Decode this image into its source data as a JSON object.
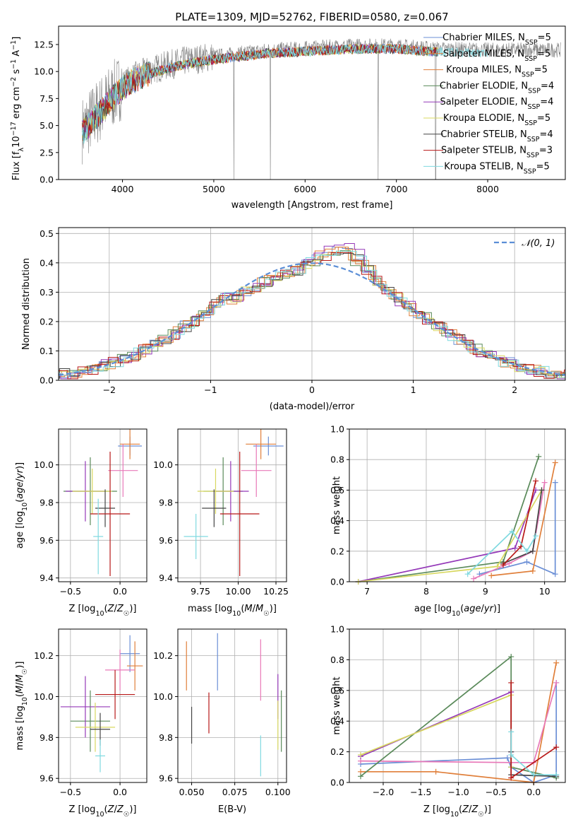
{
  "chart_data": [
    {
      "type": "line",
      "title": "PLATE=1309, MJD=52762, FIBERID=0580, z=0.067",
      "xlabel": "wavelength [Angstrom, rest frame]",
      "ylabel_parts": [
        "Flux [f",
        "λ",
        "10",
        "−17",
        " erg cm",
        "−2",
        " s",
        "−1",
        " A",
        "−1",
        "]"
      ],
      "xlim": [
        3300,
        8850
      ],
      "ylim": [
        0,
        14.2
      ],
      "xticks": [
        4000,
        5000,
        6000,
        7000,
        8000
      ],
      "yticks": [
        0.0,
        2.5,
        5.0,
        7.5,
        10.0,
        12.5
      ],
      "continuum": [
        [
          3560,
          4.6
        ],
        [
          3700,
          6.0
        ],
        [
          3850,
          7.4
        ],
        [
          4000,
          8.8
        ],
        [
          4150,
          9.6
        ],
        [
          4300,
          10.1
        ],
        [
          4500,
          10.6
        ],
        [
          4700,
          11.0
        ],
        [
          5000,
          11.4
        ],
        [
          5300,
          11.7
        ],
        [
          5600,
          12.0
        ],
        [
          5900,
          12.1
        ],
        [
          6300,
          12.3
        ],
        [
          6600,
          12.4
        ],
        [
          7000,
          12.4
        ],
        [
          7300,
          12.2
        ],
        [
          7460,
          12.1
        ],
        [
          8000,
          12.0
        ],
        [
          8800,
          12.0
        ]
      ],
      "data_series": {
        "name": "data",
        "color": "#808080"
      },
      "spikes": [
        {
          "x": 5220,
          "y": 0
        },
        {
          "x": 5620,
          "y": 0
        },
        {
          "x": 6800,
          "y": 0
        },
        {
          "x": 7430,
          "y": 0
        }
      ],
      "legend": [
        {
          "main": "Chabrier MILES, N",
          "sub": "SSP",
          "tail": "=5",
          "color": "#6b8fd6"
        },
        {
          "main": "Salpeter MILES, N",
          "sub": "SSP",
          "tail": "=5",
          "color": "#e07f3a"
        },
        {
          "main": "Kroupa MILES, N",
          "sub": "SSP",
          "tail": "=5",
          "color": "#e07f3a"
        },
        {
          "main": "Chabrier ELODIE, N",
          "sub": "SSP",
          "tail": "=4",
          "color": "#5a8a5a"
        },
        {
          "main": "Salpeter ELODIE, N",
          "sub": "SSP",
          "tail": "=4",
          "color": "#9438b8"
        },
        {
          "main": "Kroupa ELODIE, N",
          "sub": "SSP",
          "tail": "=5",
          "color": "#d8d860"
        },
        {
          "main": "Chabrier STELIB, N",
          "sub": "SSP",
          "tail": "=4",
          "color": "#444444"
        },
        {
          "main": "Salpeter STELIB, N",
          "sub": "SSP",
          "tail": "=3",
          "color": "#b81818"
        },
        {
          "main": "Kroupa STELIB, N",
          "sub": "SSP",
          "tail": "=5",
          "color": "#7fd9e0"
        }
      ]
    },
    {
      "type": "histogram",
      "xlabel": "(data-model)/error",
      "ylabel": "Normed distribution",
      "xlim": [
        -2.5,
        2.5
      ],
      "ylim": [
        0,
        0.52
      ],
      "xticks": [
        -2,
        -1,
        0,
        1,
        2
      ],
      "xtick_labels": [
        "−2",
        "−1",
        "0",
        "1",
        "2"
      ],
      "yticks": [
        0.0,
        0.1,
        0.2,
        0.3,
        0.4,
        0.5
      ],
      "reference": {
        "label": "𝒩(0, 1)",
        "mean": 0,
        "sigma": 1,
        "color": "#5b8ed6"
      },
      "bin_width": 0.1,
      "series": [
        {
          "color": "#6b8fd6",
          "offset": 0.0,
          "skew": 0.3,
          "values": []
        },
        {
          "color": "#e07f3a",
          "offset": -0.04,
          "skew": 0.25
        },
        {
          "color": "#e07f3a",
          "offset": 0.03,
          "skew": 0.3
        },
        {
          "color": "#5a8a5a",
          "offset": -0.02,
          "skew": 0.2
        },
        {
          "color": "#9438b8",
          "offset": 0.02,
          "skew": 0.35
        },
        {
          "color": "#d8d860",
          "offset": 0.0,
          "skew": 0.25
        },
        {
          "color": "#444444",
          "offset": 0.01,
          "skew": 0.28
        },
        {
          "color": "#b81818",
          "offset": -0.01,
          "skew": 0.22
        },
        {
          "color": "#7fd9e0",
          "offset": 0.04,
          "skew": 0.3
        }
      ]
    },
    {
      "type": "errorbar",
      "xlabel": "Z [log10(Z/Z☉)]",
      "ylabel": "age  [log10(age/yr)]",
      "xlim": [
        -0.62,
        0.27
      ],
      "ylim": [
        9.38,
        10.19
      ],
      "xticks": [
        -0.5,
        0.0
      ],
      "xtick_labels": [
        "−0.5",
        "0.0"
      ],
      "yticks": [
        9.4,
        9.6,
        9.8,
        10.0
      ],
      "points": [
        {
          "x": 0.1,
          "xerr": 0.12,
          "y": 10.1,
          "yerr": 0.05,
          "color": "#6b8fd6"
        },
        {
          "x": 0.1,
          "xerr": 0.1,
          "y": 10.11,
          "yerr": 0.08,
          "color": "#e07f3a"
        },
        {
          "x": 0.03,
          "xerr": 0.15,
          "y": 9.97,
          "yerr": 0.14,
          "color": "#e878b8"
        },
        {
          "x": -0.3,
          "xerr": 0.27,
          "y": 9.86,
          "yerr": 0.18,
          "color": "#5a8a5a"
        },
        {
          "x": -0.35,
          "xerr": 0.2,
          "y": 9.86,
          "yerr": 0.16,
          "color": "#9438b8"
        },
        {
          "x": -0.28,
          "xerr": 0.2,
          "y": 9.86,
          "yerr": 0.12,
          "color": "#d8d860"
        },
        {
          "x": -0.15,
          "xerr": 0.1,
          "y": 9.77,
          "yerr": 0.1,
          "color": "#444444"
        },
        {
          "x": -0.1,
          "xerr": 0.2,
          "y": 9.74,
          "yerr": 0.33,
          "color": "#b81818"
        },
        {
          "x": -0.22,
          "xerr": 0.05,
          "y": 9.62,
          "yerr": 0.2,
          "color": "#7fd9e0"
        }
      ]
    },
    {
      "type": "errorbar",
      "xlabel": "mass [log10(M/M☉)]",
      "xlim": [
        9.6,
        10.32
      ],
      "ylim": [
        9.38,
        10.19
      ],
      "xticks": [
        9.75,
        10.0,
        10.25
      ],
      "xtick_labels": [
        "9.75",
        "10.00",
        "10.25"
      ],
      "yticks": [
        9.4,
        9.6,
        9.8,
        10.0
      ],
      "points": [
        {
          "x": 10.2,
          "xerr": 0.1,
          "y": 10.1,
          "yerr": 0.05,
          "color": "#6b8fd6"
        },
        {
          "x": 10.15,
          "xerr": 0.1,
          "y": 10.11,
          "yerr": 0.08,
          "color": "#e07f3a"
        },
        {
          "x": 10.12,
          "xerr": 0.1,
          "y": 9.97,
          "yerr": 0.14,
          "color": "#e878b8"
        },
        {
          "x": 9.9,
          "xerr": 0.13,
          "y": 9.86,
          "yerr": 0.18,
          "color": "#5a8a5a"
        },
        {
          "x": 9.95,
          "xerr": 0.12,
          "y": 9.86,
          "yerr": 0.16,
          "color": "#9438b8"
        },
        {
          "x": 9.85,
          "xerr": 0.12,
          "y": 9.86,
          "yerr": 0.12,
          "color": "#d8d860"
        },
        {
          "x": 9.84,
          "xerr": 0.08,
          "y": 9.77,
          "yerr": 0.1,
          "color": "#444444"
        },
        {
          "x": 10.01,
          "xerr": 0.13,
          "y": 9.74,
          "yerr": 0.33,
          "color": "#b81818"
        },
        {
          "x": 9.72,
          "xerr": 0.08,
          "y": 9.62,
          "yerr": 0.12,
          "color": "#7fd9e0"
        }
      ]
    },
    {
      "type": "line",
      "xlabel": "age  [log10(age/yr)]",
      "ylabel": "mass weight",
      "xlim": [
        6.7,
        10.35
      ],
      "ylim": [
        0,
        1.0
      ],
      "xticks": [
        7,
        8,
        9,
        10
      ],
      "yticks": [
        0.0,
        0.2,
        0.4,
        0.6,
        0.8,
        1.0
      ],
      "series": [
        {
          "color": "#6b8fd6",
          "x": [
            8.9,
            9.7,
            10.18,
            10.18
          ],
          "y": [
            0.05,
            0.13,
            0.05,
            0.65
          ]
        },
        {
          "color": "#e07f3a",
          "x": [
            9.1,
            9.8,
            10.18
          ],
          "y": [
            0.04,
            0.07,
            0.78
          ]
        },
        {
          "color": "#e878b8",
          "x": [
            8.8,
            9.4,
            9.8,
            10.0
          ],
          "y": [
            0.02,
            0.12,
            0.2,
            0.65
          ]
        },
        {
          "color": "#5a8a5a",
          "x": [
            6.85,
            9.3,
            9.9
          ],
          "y": [
            0.0,
            0.13,
            0.82
          ]
        },
        {
          "color": "#9438b8",
          "x": [
            6.85,
            9.5,
            9.85
          ],
          "y": [
            0.0,
            0.22,
            0.6
          ]
        },
        {
          "color": "#d8d860",
          "x": [
            6.85,
            9.2,
            9.95
          ],
          "y": [
            0.0,
            0.1,
            0.6
          ]
        },
        {
          "color": "#444444",
          "x": [
            9.3,
            9.8,
            9.95
          ],
          "y": [
            0.12,
            0.2,
            0.6
          ]
        },
        {
          "color": "#b81818",
          "x": [
            9.3,
            9.6,
            9.85
          ],
          "y": [
            0.11,
            0.23,
            0.66
          ]
        },
        {
          "color": "#7fd9e0",
          "x": [
            8.7,
            9.45,
            9.7,
            9.85
          ],
          "y": [
            0.05,
            0.33,
            0.2,
            0.3
          ]
        }
      ]
    },
    {
      "type": "errorbar",
      "xlabel": "Z [log10(Z/Z☉)]",
      "ylabel": "mass [log10(M/M☉)]",
      "xlim": [
        -0.62,
        0.27
      ],
      "ylim": [
        9.58,
        10.33
      ],
      "xticks": [
        -0.5,
        0.0
      ],
      "xtick_labels": [
        "−0.5",
        "0.0"
      ],
      "yticks": [
        9.6,
        9.8,
        10.0,
        10.2
      ],
      "points": [
        {
          "x": 0.1,
          "xerr": 0.1,
          "y": 10.21,
          "yerr": 0.09,
          "color": "#6b8fd6"
        },
        {
          "x": 0.15,
          "xerr": 0.08,
          "y": 10.15,
          "yerr": 0.12,
          "color": "#e07f3a"
        },
        {
          "x": 0.0,
          "xerr": 0.15,
          "y": 10.13,
          "yerr": 0.1,
          "color": "#e878b8"
        },
        {
          "x": -0.3,
          "xerr": 0.2,
          "y": 9.88,
          "yerr": 0.15,
          "color": "#5a8a5a"
        },
        {
          "x": -0.35,
          "xerr": 0.25,
          "y": 9.95,
          "yerr": 0.15,
          "color": "#9438b8"
        },
        {
          "x": -0.25,
          "xerr": 0.2,
          "y": 9.85,
          "yerr": 0.12,
          "color": "#d8d860"
        },
        {
          "x": -0.2,
          "xerr": 0.1,
          "y": 9.84,
          "yerr": 0.08,
          "color": "#444444"
        },
        {
          "x": -0.05,
          "xerr": 0.2,
          "y": 10.01,
          "yerr": 0.12,
          "color": "#b81818"
        },
        {
          "x": -0.2,
          "xerr": 0.05,
          "y": 9.71,
          "yerr": 0.08,
          "color": "#7fd9e0"
        }
      ]
    },
    {
      "type": "errorbar",
      "xlabel": "E(B-V)",
      "xlim": [
        0.042,
        0.105
      ],
      "ylim": [
        9.58,
        10.33
      ],
      "xticks": [
        0.05,
        0.075,
        0.1
      ],
      "xtick_labels": [
        "0.050",
        "0.075",
        "0.100"
      ],
      "yticks": [
        9.6,
        9.8,
        10.0,
        10.2
      ],
      "points": [
        {
          "x": 0.065,
          "y": 10.17,
          "yerr": 0.14,
          "color": "#6b8fd6"
        },
        {
          "x": 0.047,
          "y": 10.15,
          "yerr": 0.12,
          "color": "#e07f3a"
        },
        {
          "x": 0.09,
          "y": 10.13,
          "yerr": 0.15,
          "color": "#e878b8"
        },
        {
          "x": 0.102,
          "y": 9.88,
          "yerr": 0.15,
          "color": "#5a8a5a"
        },
        {
          "x": 0.1,
          "y": 10.0,
          "yerr": 0.11,
          "color": "#9438b8"
        },
        {
          "x": 0.1,
          "y": 9.86,
          "yerr": 0.12,
          "color": "#d8d860"
        },
        {
          "x": 0.05,
          "y": 9.86,
          "yerr": 0.09,
          "color": "#444444"
        },
        {
          "x": 0.06,
          "y": 9.92,
          "yerr": 0.1,
          "color": "#b81818"
        },
        {
          "x": 0.09,
          "y": 9.71,
          "yerr": 0.1,
          "color": "#7fd9e0"
        }
      ]
    },
    {
      "type": "line",
      "xlabel": "Z [log10(Z/Z☉)]",
      "ylabel": "mass weight",
      "xlim": [
        -2.45,
        0.42
      ],
      "ylim": [
        0,
        1.0
      ],
      "xticks": [
        -2.0,
        -1.5,
        -1.0,
        -0.5,
        0.0
      ],
      "xtick_labels": [
        "−2.0",
        "−1.5",
        "−1.0",
        "−0.5",
        "0.0"
      ],
      "yticks": [
        0.0,
        0.2,
        0.4,
        0.6,
        0.8,
        1.0
      ],
      "series": [
        {
          "color": "#6b8fd6",
          "x": [
            -2.3,
            -0.35,
            -0.3,
            0.0,
            0.3,
            0.3
          ],
          "y": [
            0.12,
            0.16,
            0.1,
            0.0,
            0.05,
            0.65
          ]
        },
        {
          "color": "#e07f3a",
          "x": [
            -2.3,
            -1.3,
            0.0,
            0.3
          ],
          "y": [
            0.07,
            0.07,
            0.0,
            0.78
          ]
        },
        {
          "color": "#e878b8",
          "x": [
            -2.3,
            -0.3,
            0.0,
            0.3
          ],
          "y": [
            0.14,
            0.13,
            0.13,
            0.65
          ]
        },
        {
          "color": "#5a8a5a",
          "x": [
            -2.3,
            -0.3,
            -0.3,
            0.3
          ],
          "y": [
            0.04,
            0.82,
            0.1,
            0.03
          ]
        },
        {
          "color": "#9438b8",
          "x": [
            -2.3,
            -0.3,
            -0.3
          ],
          "y": [
            0.17,
            0.59,
            0.2
          ]
        },
        {
          "color": "#d8d860",
          "x": [
            -2.3,
            -0.3,
            -0.3
          ],
          "y": [
            0.18,
            0.57,
            0.1
          ]
        },
        {
          "color": "#444444",
          "x": [
            -0.3,
            -0.3,
            0.3
          ],
          "y": [
            0.2,
            0.05,
            0.04
          ]
        },
        {
          "color": "#b81818",
          "x": [
            -0.3,
            -0.3,
            0.3
          ],
          "y": [
            0.65,
            0.03,
            0.23
          ]
        },
        {
          "color": "#7fd9e0",
          "x": [
            -0.3,
            -0.3,
            0.0,
            0.3
          ],
          "y": [
            0.33,
            0.18,
            0.05,
            0.05
          ]
        }
      ]
    }
  ]
}
